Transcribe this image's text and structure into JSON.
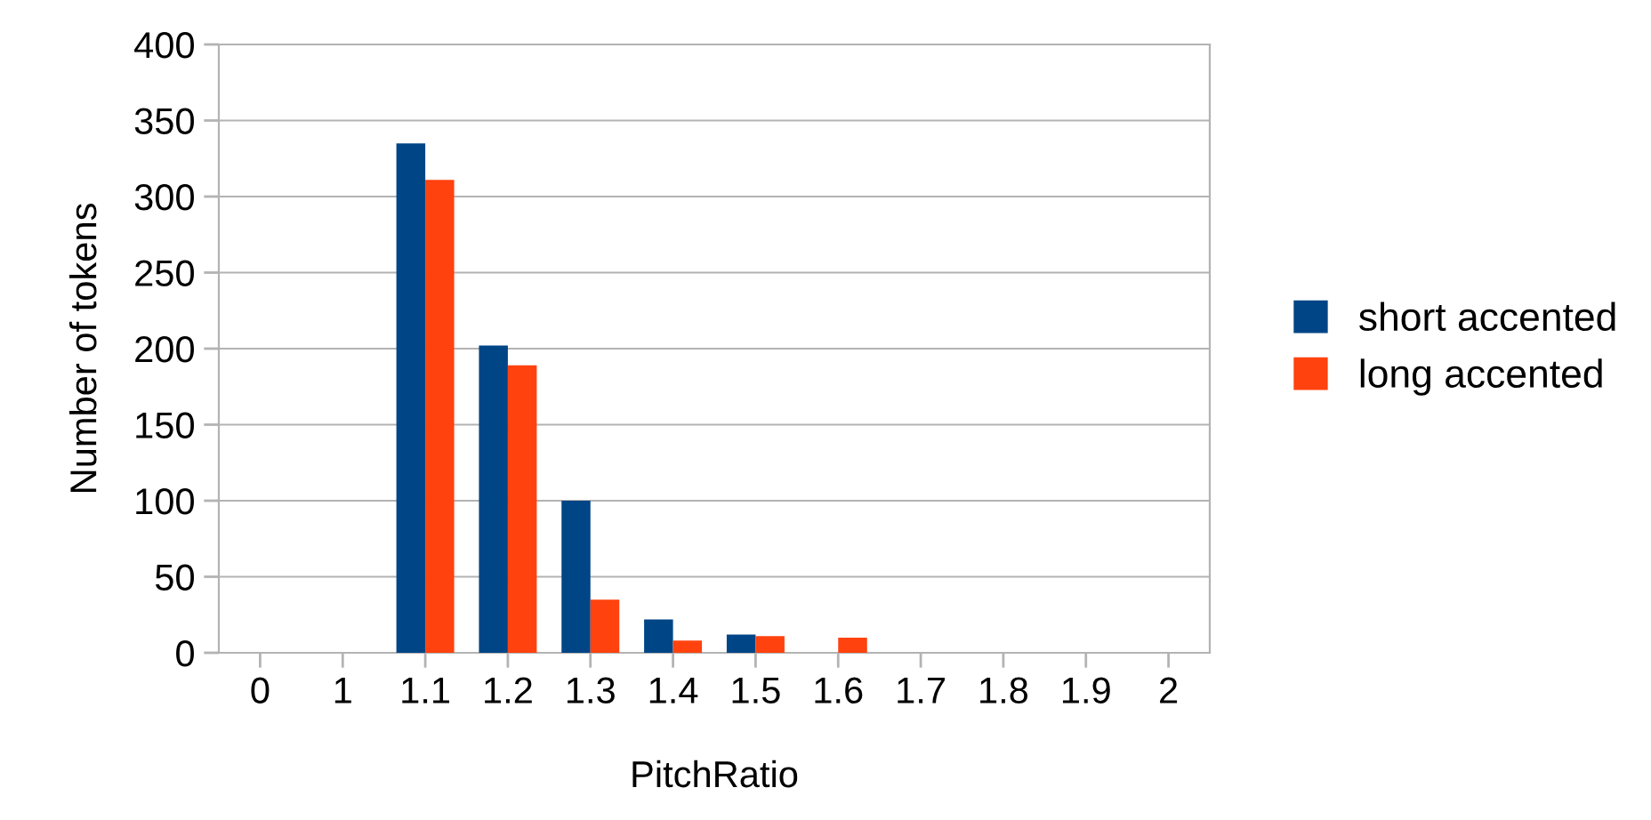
{
  "chart_data": {
    "type": "bar",
    "xlabel": "PitchRatio",
    "ylabel": "Number of tokens",
    "categories": [
      "0",
      "1",
      "1.1",
      "1.2",
      "1.3",
      "1.4",
      "1.5",
      "1.6",
      "1.7",
      "1.8",
      "1.9",
      "2"
    ],
    "series": [
      {
        "name": "short accented",
        "color": "#004586",
        "values": [
          0,
          0,
          335,
          202,
          100,
          22,
          12,
          0,
          0,
          0,
          0,
          0
        ]
      },
      {
        "name": "long accented",
        "color": "#ff420e",
        "values": [
          0,
          0,
          311,
          189,
          35,
          8,
          11,
          10,
          0,
          0,
          0,
          0
        ]
      }
    ],
    "ylim": [
      0,
      400
    ],
    "yticks": [
      0,
      50,
      100,
      150,
      200,
      250,
      300,
      350,
      400
    ],
    "grid": "y",
    "legend": "right"
  }
}
